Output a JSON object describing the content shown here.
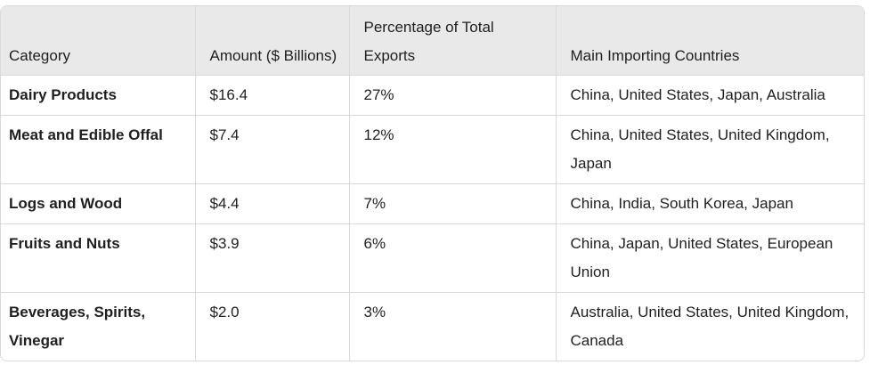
{
  "table": {
    "headers": [
      "Category",
      "Amount ($ Billions)",
      "Percentage of Total Exports",
      "Main Importing Countries"
    ],
    "rows": [
      {
        "category": "Dairy Products",
        "amount": "$16.4",
        "percentage": "27%",
        "countries": "China, United States, Japan, Australia"
      },
      {
        "category": "Meat and Edible Offal",
        "amount": "$7.4",
        "percentage": "12%",
        "countries": "China, United States, United Kingdom, Japan"
      },
      {
        "category": "Logs and Wood",
        "amount": "$4.4",
        "percentage": "7%",
        "countries": "China, India, South Korea, Japan"
      },
      {
        "category": "Fruits and Nuts",
        "amount": "$3.9",
        "percentage": "6%",
        "countries": "China, Japan, United States, European Union"
      },
      {
        "category": "Beverages, Spirits, Vinegar",
        "amount": "$2.0",
        "percentage": "3%",
        "countries": "Australia, United States, United Kingdom, Canada"
      }
    ]
  }
}
